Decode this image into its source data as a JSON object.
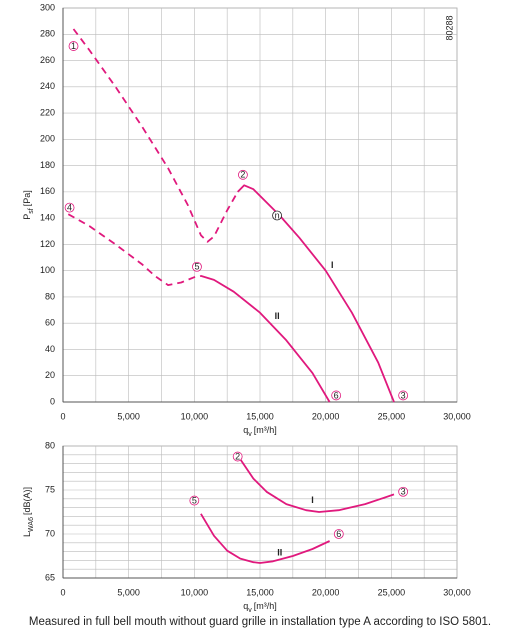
{
  "chart_data": [
    {
      "type": "line",
      "xlabel": {
        "main": "q",
        "sub": "v",
        "unit": "[m³/h]"
      },
      "ylabel": {
        "main": "P",
        "sub": "sf",
        "unit": "[Pa]"
      },
      "id_label": "80288",
      "xlim": [
        0,
        30000
      ],
      "xticks": [
        0,
        {
          "value": 5000,
          "label": "5,000"
        },
        {
          "value": 10000,
          "label": "10,000"
        },
        {
          "value": 15000,
          "label": "15,000"
        },
        {
          "value": 20000,
          "label": "20,000"
        },
        {
          "value": 25000,
          "label": "25,000"
        },
        {
          "value": 30000,
          "label": "30,000"
        }
      ],
      "x_minor_ticks": [
        2500,
        7500,
        12500,
        17500,
        22500,
        27500
      ],
      "ylim": [
        0,
        300
      ],
      "yticks": [
        0,
        20,
        40,
        60,
        80,
        100,
        120,
        140,
        160,
        180,
        200,
        220,
        240,
        260,
        280,
        300
      ],
      "grid": true,
      "series": [
        {
          "line": "dashed",
          "color": "#e0197d",
          "x": [
            800,
            2000,
            4000,
            6000,
            8000,
            9500,
            10500,
            11000,
            11500,
            12500,
            13300
          ],
          "values": [
            284,
            268,
            240,
            210,
            178,
            150,
            127,
            122,
            126,
            146,
            160
          ]
        },
        {
          "line": "solid",
          "color": "#e0197d",
          "x": [
            13300,
            13800,
            14500,
            16500,
            18000,
            20000,
            22000,
            24000,
            25200
          ],
          "values": [
            160,
            165,
            162,
            142,
            125,
            100,
            68,
            30,
            0
          ]
        },
        {
          "line": "dashed",
          "color": "#e0197d",
          "x": [
            400,
            2000,
            4000,
            6000,
            7000,
            8000,
            9000,
            10000,
            10500
          ],
          "values": [
            143,
            134,
            120,
            105,
            96,
            89,
            91,
            95,
            96
          ]
        },
        {
          "line": "solid",
          "color": "#e0197d",
          "x": [
            10500,
            11500,
            13000,
            15000,
            17000,
            19000,
            20300
          ],
          "values": [
            96,
            93,
            84,
            68,
            47,
            22,
            0
          ]
        }
      ],
      "annotations": [
        {
          "text": "1",
          "circled": true,
          "x": 800,
          "y": 271
        },
        {
          "text": "2",
          "circled": true,
          "x": 13700,
          "y": 173
        },
        {
          "text": "n",
          "circled": true,
          "x": 16300,
          "y": 142
        },
        {
          "text": "3",
          "circled": true,
          "x": 25900,
          "y": 5
        },
        {
          "text": "4",
          "circled": true,
          "x": 500,
          "y": 148
        },
        {
          "text": "5",
          "circled": true,
          "x": 10200,
          "y": 103
        },
        {
          "text": "6",
          "circled": true,
          "x": 20800,
          "y": 5
        },
        {
          "text": "I",
          "circled": false,
          "x": 20500,
          "y": 104
        },
        {
          "text": "II",
          "circled": false,
          "x": 16300,
          "y": 65
        }
      ]
    },
    {
      "type": "line",
      "xlabel": {
        "main": "q",
        "sub": "v",
        "unit": "[m³/h]"
      },
      "ylabel": {
        "main": "L",
        "sub": "WA6",
        "unit": "[dB(A)]"
      },
      "xlim": [
        0,
        30000
      ],
      "xticks": [
        0,
        {
          "value": 5000,
          "label": "5,000"
        },
        {
          "value": 10000,
          "label": "10,000"
        },
        {
          "value": 15000,
          "label": "15,000"
        },
        {
          "value": 20000,
          "label": "20,000"
        },
        {
          "value": 25000,
          "label": "25,000"
        },
        {
          "value": 30000,
          "label": "30,000"
        }
      ],
      "x_minor_ticks": [
        2500,
        7500,
        12500,
        17500,
        22500,
        27500
      ],
      "ylim": [
        65,
        80
      ],
      "yticks": [
        65,
        70,
        75,
        80
      ],
      "y_minor_ticks": [
        66,
        67,
        68,
        69,
        71,
        72,
        73,
        74,
        76,
        77,
        78,
        79
      ],
      "grid": true,
      "series": [
        {
          "line": "solid",
          "color": "#e0197d",
          "x": [
            13500,
            14500,
            15500,
            17000,
            18500,
            19500,
            21000,
            23000,
            25200
          ],
          "values": [
            78.5,
            76.3,
            74.8,
            73.4,
            72.7,
            72.5,
            72.7,
            73.4,
            74.5
          ]
        },
        {
          "line": "solid",
          "color": "#e0197d",
          "x": [
            10500,
            11500,
            12500,
            13500,
            14500,
            15000,
            16000,
            17500,
            19000,
            20300
          ],
          "values": [
            72.3,
            69.8,
            68.1,
            67.2,
            66.8,
            66.7,
            66.9,
            67.5,
            68.3,
            69.2
          ]
        }
      ],
      "annotations": [
        {
          "text": "2",
          "circled": true,
          "x": 13300,
          "y": 78.8
        },
        {
          "text": "3",
          "circled": true,
          "x": 25900,
          "y": 74.8
        },
        {
          "text": "5",
          "circled": true,
          "x": 10000,
          "y": 73.8
        },
        {
          "text": "6",
          "circled": true,
          "x": 21000,
          "y": 70.0
        },
        {
          "text": "I",
          "circled": false,
          "x": 19000,
          "y": 73.8
        },
        {
          "text": "II",
          "circled": false,
          "x": 16500,
          "y": 67.8
        }
      ]
    }
  ],
  "footnote": "Measured in full bell mouth without guard grille in installation type A according to ISO 5801."
}
